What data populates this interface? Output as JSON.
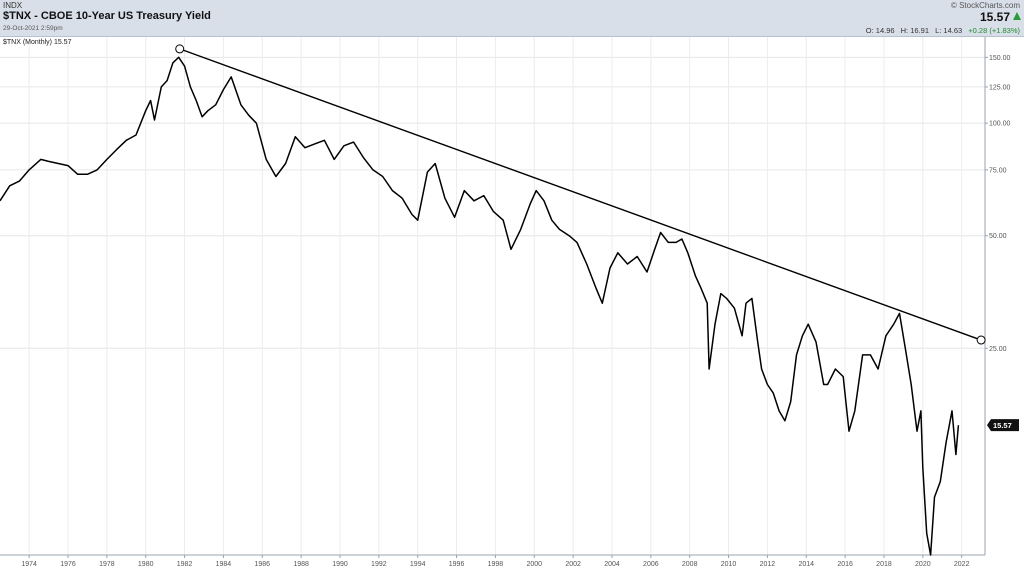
{
  "header": {
    "exchange": "INDX",
    "title": "$TNX - CBOE 10-Year US Treasury Yield",
    "datetime": "29-Oct-2021 2:59pm",
    "copyright": "© StockCharts.com",
    "last": "15.57",
    "open": "O: 14.96",
    "high": "H: 16.91",
    "low": "L: 14.63",
    "change": "+0.28 (+1.83%)"
  },
  "legend": "$TNX (Monthly) 15.57",
  "colors": {
    "header_bg": "#d9dfe9",
    "line": "#000000",
    "up": "#2a9a3a",
    "grid": "#e6e6e6"
  },
  "chart_data": {
    "type": "line",
    "yscale": "log",
    "ylim": [
      7.0,
      170
    ],
    "xlim": [
      1972.5,
      2023.2
    ],
    "y_ticks": [
      25,
      50,
      75,
      100,
      125,
      150
    ],
    "y_tick_labels": [
      "25.00",
      "50.00",
      "75.00",
      "100.00",
      "125.00",
      "150.00"
    ],
    "x_ticks": [
      1974,
      1976,
      1978,
      1980,
      1982,
      1984,
      1986,
      1988,
      1990,
      1992,
      1994,
      1996,
      1998,
      2000,
      2002,
      2004,
      2006,
      2008,
      2010,
      2012,
      2014,
      2016,
      2018,
      2020,
      2022
    ],
    "x_tick_labels": [
      "1974",
      "1976",
      "1978",
      "1980",
      "1982",
      "1984",
      "1986",
      "1988",
      "1990",
      "1992",
      "1994",
      "1996",
      "1998",
      "2000",
      "2002",
      "2004",
      "2006",
      "2008",
      "2010",
      "2012",
      "2014",
      "2016",
      "2018",
      "2020",
      "2022"
    ],
    "last_value_label": "15.57",
    "series": [
      {
        "x": [
          1972.5,
          1973.0,
          1973.5,
          1974.0,
          1974.6,
          1975.0,
          1975.5,
          1976.0,
          1976.5,
          1977.0,
          1977.5,
          1978.0,
          1978.5,
          1979.0,
          1979.5,
          1980.0,
          1980.25,
          1980.45,
          1980.8,
          1981.1,
          1981.4,
          1981.7,
          1982.0,
          1982.3,
          1982.6,
          1982.9,
          1983.2,
          1983.6,
          1984.0,
          1984.4,
          1984.9,
          1985.3,
          1985.7,
          1986.2,
          1986.7,
          1987.2,
          1987.7,
          1988.2,
          1988.7,
          1989.2,
          1989.7,
          1990.2,
          1990.7,
          1991.2,
          1991.7,
          1992.2,
          1992.7,
          1993.2,
          1993.7,
          1994.0,
          1994.5,
          1994.9,
          1995.4,
          1995.9,
          1996.4,
          1996.9,
          1997.4,
          1997.9,
          1998.4,
          1998.8,
          1999.3,
          1999.8,
          2000.1,
          2000.5,
          2000.9,
          2001.3,
          2001.8,
          2002.2,
          2002.7,
          2003.2,
          2003.5,
          2003.9,
          2004.3,
          2004.8,
          2005.3,
          2005.8,
          2006.2,
          2006.5,
          2006.9,
          2007.3,
          2007.6,
          2007.9,
          2008.3,
          2008.6,
          2008.9,
          2009.0,
          2009.3,
          2009.6,
          2009.9,
          2010.3,
          2010.7,
          2010.9,
          2011.2,
          2011.5,
          2011.7,
          2012.0,
          2012.3,
          2012.6,
          2012.9,
          2013.2,
          2013.5,
          2013.8,
          2014.1,
          2014.5,
          2014.9,
          2015.1,
          2015.5,
          2015.9,
          2016.2,
          2016.5,
          2016.9,
          2017.3,
          2017.7,
          2018.1,
          2018.5,
          2018.8,
          2019.1,
          2019.4,
          2019.7,
          2019.9,
          2020.0,
          2020.2,
          2020.4,
          2020.6,
          2020.9,
          2021.2,
          2021.5,
          2021.7,
          2021.83
        ],
        "y": [
          62,
          68,
          70,
          75,
          80,
          79,
          78,
          77,
          73,
          73,
          75,
          80,
          85,
          90,
          93,
          108,
          115,
          102,
          125,
          130,
          145,
          150,
          142,
          125,
          115,
          104,
          108,
          112,
          123,
          133,
          112,
          105,
          100,
          80,
          72,
          78,
          92,
          86,
          88,
          90,
          80,
          87,
          89,
          81,
          75,
          72,
          66,
          63,
          57,
          55,
          74,
          78,
          63,
          56,
          66,
          62,
          64,
          58,
          55,
          46,
          52,
          61,
          66,
          62,
          55,
          52,
          50,
          48,
          42,
          36,
          33,
          41,
          45,
          42,
          44,
          40,
          46,
          51,
          48,
          48,
          49,
          45,
          39,
          36,
          33,
          22,
          29,
          35,
          34,
          32,
          27,
          33,
          34,
          26,
          22,
          20,
          19,
          17,
          16,
          18,
          24,
          27,
          29,
          26,
          20,
          20,
          22,
          21,
          15,
          17,
          24,
          24,
          22,
          27,
          29,
          31,
          25,
          20,
          15,
          17,
          12,
          8,
          7,
          10,
          11,
          14,
          17,
          13,
          15.57
        ]
      }
    ],
    "trendline": {
      "x": [
        1981.75,
        2023.0
      ],
      "y": [
        158,
        26.3
      ]
    }
  }
}
